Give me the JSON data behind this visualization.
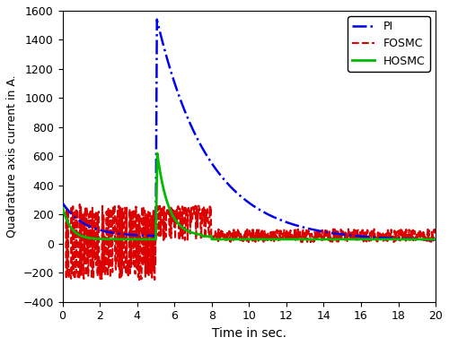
{
  "title": "",
  "xlabel": "Time in sec.",
  "ylabel": "Quadrature axis current in A.",
  "xlim": [
    0,
    20
  ],
  "ylim": [
    -400,
    1600
  ],
  "yticks": [
    -400,
    -200,
    0,
    200,
    400,
    600,
    800,
    1000,
    1200,
    1400,
    1600
  ],
  "xticks": [
    0,
    2,
    4,
    6,
    8,
    10,
    12,
    14,
    16,
    18,
    20
  ],
  "pi_color": "#0000EE",
  "fosmc_color": "#DD0000",
  "hosmc_color": "#00BB00",
  "legend_labels": [
    "PI",
    "FOSMC",
    "HOSMC"
  ],
  "pi_linestyle": "-.",
  "fosmc_linestyle": "--",
  "hosmc_linestyle": "-",
  "pi_linewidth": 1.8,
  "fosmc_linewidth": 1.5,
  "hosmc_linewidth": 2.0,
  "legend_loc": "upper right",
  "legend_fontsize": 9,
  "tick_fontsize": 9,
  "xlabel_fontsize": 10,
  "ylabel_fontsize": 9
}
